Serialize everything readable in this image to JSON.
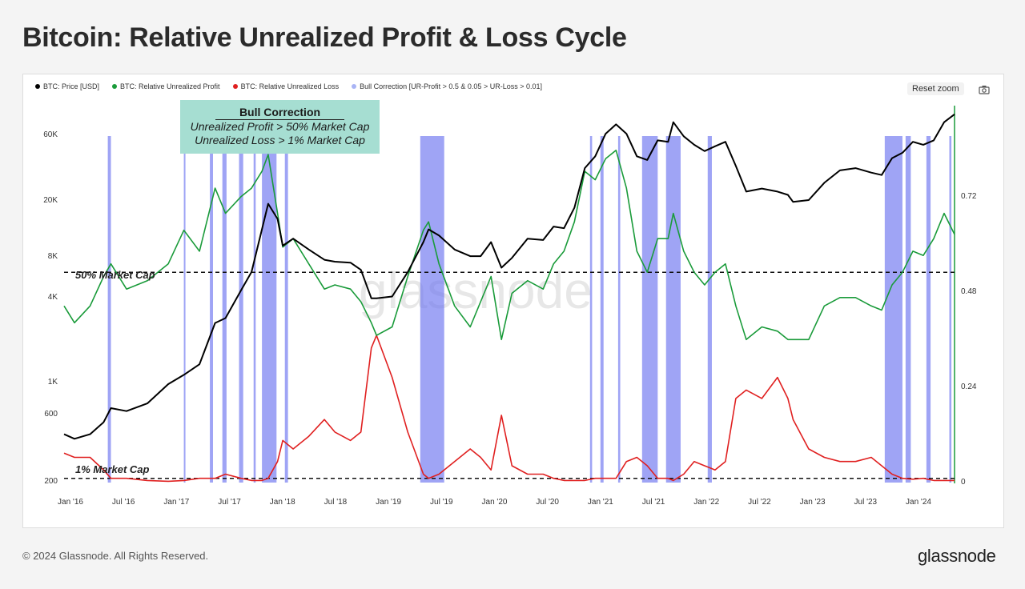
{
  "page": {
    "title": "Bitcoin: Relative Unrealized Profit & Loss Cycle",
    "copyright": "© 2024 Glassnode. All Rights Reserved.",
    "logo_text": "glassnode",
    "watermark": "glassnode"
  },
  "toolbar": {
    "reset_zoom_label": "Reset zoom",
    "camera_icon": "camera-icon"
  },
  "legend": [
    {
      "label": "BTC: Price [USD]",
      "color": "#000000"
    },
    {
      "label": "BTC: Relative Unrealized Profit",
      "color": "#1a9b3a"
    },
    {
      "label": "BTC: Relative Unrealized Loss",
      "color": "#e02020"
    },
    {
      "label": "Bull Correction [UR-Profit > 0.5 & 0.05 > UR-Loss > 0.01]",
      "color": "#a9b4f5"
    }
  ],
  "annotation": {
    "title": "Bull Correction",
    "line1": "Unrealized Profit > 50% Market Cap",
    "line2": "Unrealized Loss > 1% Market Cap"
  },
  "chart_data": {
    "type": "line",
    "title": "Bitcoin: Relative Unrealized Profit & Loss Cycle",
    "x_ticks": [
      "Jan '16",
      "Jul '16",
      "Jan '17",
      "Jul '17",
      "Jan '18",
      "Jul '18",
      "Jan '19",
      "Jul '19",
      "Jan '20",
      "Jul '20",
      "Jan '21",
      "Jul '21",
      "Jan '22",
      "Jul '22",
      "Jan '23",
      "Jul '23",
      "Jan '24"
    ],
    "y_left_ticks": [
      "60K",
      "20K",
      "8K",
      "4K",
      "1K",
      "600",
      "200"
    ],
    "y_left_scale": "log",
    "y_right_ticks": [
      "0.72",
      "0.48",
      "0.24",
      "0"
    ],
    "y_right_range": [
      0,
      0.9
    ],
    "x_range": [
      2016.0,
      2024.55
    ],
    "reference_lines": [
      {
        "label": "50% Market Cap",
        "value": 0.5
      },
      {
        "label": "1% Market Cap",
        "value": 0.01
      }
    ],
    "colors": {
      "price": "#000000",
      "profit": "#1a9b3a",
      "loss": "#e02020",
      "bull": "#6c73f0"
    },
    "series": [
      {
        "name": "BTC: Price [USD]",
        "axis": "left",
        "x": [
          2016.0,
          2016.1,
          2016.25,
          2016.38,
          2016.45,
          2016.6,
          2016.8,
          2017.0,
          2017.15,
          2017.3,
          2017.45,
          2017.55,
          2017.7,
          2017.8,
          2017.9,
          2017.96,
          2018.05,
          2018.1,
          2018.2,
          2018.35,
          2018.5,
          2018.6,
          2018.75,
          2018.85,
          2018.95,
          2019.0,
          2019.15,
          2019.3,
          2019.45,
          2019.5,
          2019.6,
          2019.75,
          2019.9,
          2020.0,
          2020.1,
          2020.2,
          2020.3,
          2020.45,
          2020.6,
          2020.7,
          2020.8,
          2020.9,
          2021.0,
          2021.1,
          2021.2,
          2021.3,
          2021.4,
          2021.5,
          2021.6,
          2021.7,
          2021.8,
          2021.85,
          2021.95,
          2022.05,
          2022.15,
          2022.25,
          2022.35,
          2022.45,
          2022.55,
          2022.7,
          2022.85,
          2022.95,
          2023.0,
          2023.15,
          2023.3,
          2023.45,
          2023.6,
          2023.75,
          2023.85,
          2023.95,
          2024.05,
          2024.15,
          2024.25,
          2024.35,
          2024.45,
          2024.55
        ],
        "values": [
          430,
          400,
          430,
          520,
          650,
          620,
          700,
          950,
          1100,
          1300,
          2500,
          2700,
          4200,
          5600,
          11000,
          16500,
          13000,
          8500,
          9500,
          8000,
          6800,
          6600,
          6500,
          5800,
          3700,
          3700,
          3800,
          5600,
          9000,
          11000,
          10000,
          8000,
          7200,
          7200,
          9000,
          6000,
          7000,
          9500,
          9300,
          11500,
          11200,
          15500,
          29000,
          35000,
          50000,
          58000,
          50000,
          35000,
          33000,
          45000,
          44000,
          60000,
          48000,
          42000,
          38000,
          41000,
          44000,
          30000,
          20000,
          21000,
          20000,
          19000,
          17000,
          17500,
          23000,
          28000,
          29000,
          27000,
          26000,
          34000,
          37000,
          44000,
          42000,
          45000,
          60000,
          68000
        ]
      },
      {
        "name": "BTC: Relative Unrealized Profit",
        "axis": "right",
        "x": [
          2016.0,
          2016.1,
          2016.25,
          2016.38,
          2016.45,
          2016.6,
          2016.8,
          2017.0,
          2017.15,
          2017.3,
          2017.45,
          2017.55,
          2017.7,
          2017.8,
          2017.9,
          2017.96,
          2018.05,
          2018.1,
          2018.2,
          2018.35,
          2018.5,
          2018.6,
          2018.75,
          2018.85,
          2018.95,
          2019.0,
          2019.15,
          2019.3,
          2019.45,
          2019.5,
          2019.6,
          2019.75,
          2019.9,
          2020.0,
          2020.1,
          2020.2,
          2020.3,
          2020.45,
          2020.6,
          2020.7,
          2020.8,
          2020.9,
          2021.0,
          2021.1,
          2021.2,
          2021.3,
          2021.4,
          2021.5,
          2021.6,
          2021.7,
          2021.8,
          2021.85,
          2021.95,
          2022.05,
          2022.15,
          2022.25,
          2022.35,
          2022.45,
          2022.55,
          2022.7,
          2022.85,
          2022.95,
          2023.0,
          2023.15,
          2023.3,
          2023.45,
          2023.6,
          2023.75,
          2023.85,
          2023.95,
          2024.05,
          2024.15,
          2024.25,
          2024.35,
          2024.45,
          2024.55
        ],
        "values": [
          0.42,
          0.38,
          0.42,
          0.49,
          0.52,
          0.46,
          0.48,
          0.52,
          0.6,
          0.55,
          0.7,
          0.64,
          0.68,
          0.7,
          0.74,
          0.78,
          0.64,
          0.56,
          0.58,
          0.52,
          0.46,
          0.47,
          0.46,
          0.43,
          0.38,
          0.35,
          0.37,
          0.49,
          0.6,
          0.62,
          0.52,
          0.42,
          0.37,
          0.43,
          0.49,
          0.34,
          0.45,
          0.48,
          0.46,
          0.52,
          0.55,
          0.62,
          0.74,
          0.72,
          0.77,
          0.79,
          0.7,
          0.55,
          0.5,
          0.58,
          0.58,
          0.64,
          0.55,
          0.5,
          0.47,
          0.5,
          0.52,
          0.42,
          0.34,
          0.37,
          0.36,
          0.34,
          0.34,
          0.34,
          0.42,
          0.44,
          0.44,
          0.42,
          0.41,
          0.47,
          0.5,
          0.55,
          0.54,
          0.58,
          0.64,
          0.59
        ]
      },
      {
        "name": "BTC: Relative Unrealized Loss",
        "axis": "right",
        "x": [
          2016.0,
          2016.1,
          2016.25,
          2016.38,
          2016.45,
          2016.6,
          2016.8,
          2017.0,
          2017.15,
          2017.3,
          2017.45,
          2017.55,
          2017.7,
          2017.8,
          2017.9,
          2017.96,
          2018.05,
          2018.1,
          2018.2,
          2018.35,
          2018.5,
          2018.6,
          2018.75,
          2018.85,
          2018.95,
          2019.0,
          2019.15,
          2019.3,
          2019.45,
          2019.5,
          2019.6,
          2019.75,
          2019.9,
          2020.0,
          2020.1,
          2020.2,
          2020.3,
          2020.45,
          2020.6,
          2020.7,
          2020.8,
          2020.9,
          2021.0,
          2021.1,
          2021.2,
          2021.3,
          2021.4,
          2021.5,
          2021.6,
          2021.7,
          2021.8,
          2021.85,
          2021.95,
          2022.05,
          2022.15,
          2022.25,
          2022.35,
          2022.45,
          2022.55,
          2022.7,
          2022.85,
          2022.95,
          2023.0,
          2023.15,
          2023.3,
          2023.45,
          2023.6,
          2023.75,
          2023.85,
          2023.95,
          2024.05,
          2024.15,
          2024.25,
          2024.35,
          2024.45,
          2024.55
        ],
        "values": [
          0.07,
          0.06,
          0.06,
          0.03,
          0.01,
          0.01,
          0.005,
          0.003,
          0.005,
          0.01,
          0.01,
          0.02,
          0.01,
          0.005,
          0.005,
          0.01,
          0.05,
          0.1,
          0.08,
          0.11,
          0.15,
          0.12,
          0.1,
          0.12,
          0.32,
          0.35,
          0.25,
          0.12,
          0.02,
          0.01,
          0.02,
          0.05,
          0.08,
          0.06,
          0.03,
          0.16,
          0.04,
          0.02,
          0.02,
          0.01,
          0.005,
          0.005,
          0.005,
          0.01,
          0.01,
          0.01,
          0.05,
          0.06,
          0.04,
          0.01,
          0.01,
          0.005,
          0.02,
          0.05,
          0.04,
          0.03,
          0.05,
          0.2,
          0.22,
          0.2,
          0.25,
          0.2,
          0.15,
          0.08,
          0.06,
          0.05,
          0.05,
          0.06,
          0.04,
          0.02,
          0.01,
          0.008,
          0.01,
          0.005,
          0.005,
          0.005
        ]
      }
    ],
    "bull_correction_bands": [
      [
        2016.42,
        2016.45
      ],
      [
        2017.15,
        2017.16
      ],
      [
        2017.4,
        2017.43
      ],
      [
        2017.52,
        2017.56
      ],
      [
        2017.68,
        2017.72
      ],
      [
        2017.82,
        2017.84
      ],
      [
        2017.9,
        2018.04
      ],
      [
        2018.12,
        2018.15
      ],
      [
        2019.42,
        2019.65
      ],
      [
        2021.05,
        2021.07
      ],
      [
        2021.15,
        2021.18
      ],
      [
        2021.32,
        2021.34
      ],
      [
        2021.55,
        2021.7
      ],
      [
        2021.78,
        2021.92
      ],
      [
        2022.18,
        2022.22
      ],
      [
        2023.88,
        2024.05
      ],
      [
        2024.08,
        2024.13
      ],
      [
        2024.28,
        2024.32
      ],
      [
        2024.5,
        2024.52
      ]
    ]
  }
}
